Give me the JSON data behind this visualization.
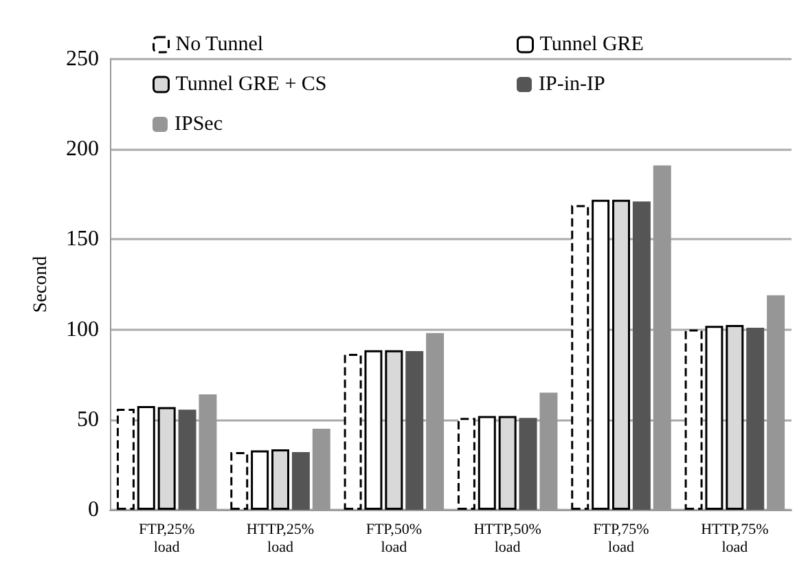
{
  "chart_data": {
    "type": "bar",
    "ylabel": "Second",
    "categories": [
      "FTP,25%\nload",
      "HTTP,25%\nload",
      "FTP,50%\nload",
      "HTTP,50%\nload",
      "FTP,75%\nload",
      "HTTP,75%\nload"
    ],
    "series": [
      {
        "name": "No Tunnel",
        "color": "#ffffff",
        "line_style": "dashed",
        "values": [
          56,
          32,
          86.5,
          51,
          169,
          100
        ]
      },
      {
        "name": "Tunnel GRE",
        "color": "#ffffff",
        "values": [
          57.5,
          33,
          88.5,
          52,
          172,
          102
        ]
      },
      {
        "name": "Tunnel GRE + CS",
        "color": "#d9d9d9",
        "values": [
          57,
          33.5,
          88.5,
          52,
          172,
          102.5
        ]
      },
      {
        "name": "IP-in-IP",
        "color": "#555555",
        "values": [
          55.5,
          32,
          88,
          51,
          171,
          101
        ]
      },
      {
        "name": "IPSec",
        "color": "#969696",
        "values": [
          64,
          45,
          98,
          65,
          191,
          119
        ]
      }
    ],
    "ylim": [
      0,
      250
    ],
    "yticks": [
      0,
      50,
      100,
      150,
      200,
      250
    ],
    "grid": "y",
    "legend": "top left"
  }
}
